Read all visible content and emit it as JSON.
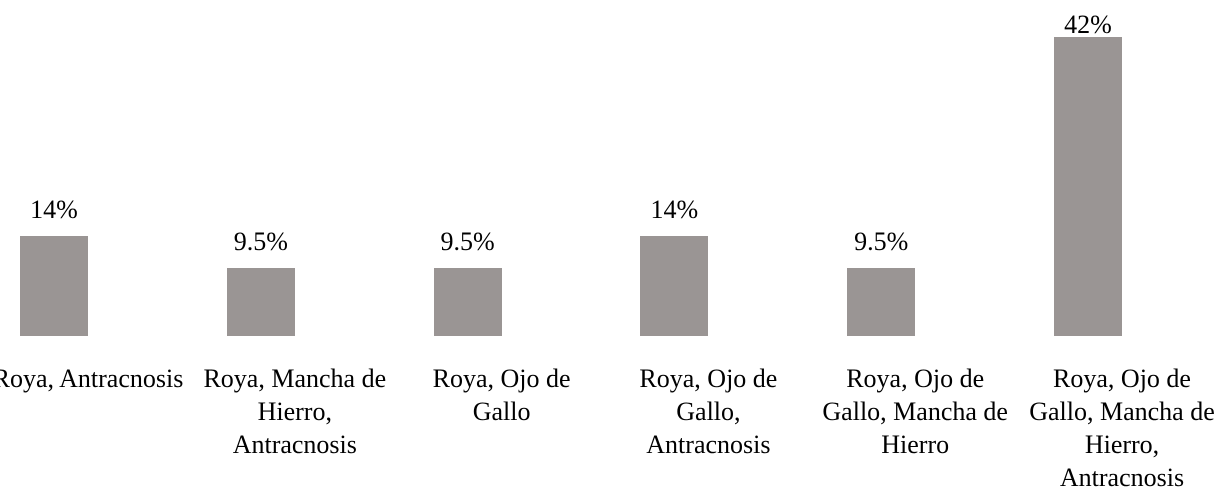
{
  "chart_data": {
    "type": "bar",
    "categories": [
      "Roya, Antracnosis",
      "Roya, Mancha de Hierro, Antracnosis",
      "Roya, Ojo de Gallo",
      "Roya, Ojo de Gallo, Antracnosis",
      "Roya, Ojo de Gallo, Mancha de Hierro",
      "Roya, Ojo de Gallo, Mancha de Hierro, Antracnosis"
    ],
    "values": [
      14,
      9.5,
      9.5,
      14,
      9.5,
      42
    ],
    "value_labels": [
      "14%",
      "9.5%",
      "9.5%",
      "14%",
      "9.5%",
      "42%"
    ],
    "color": "#9a9594"
  }
}
